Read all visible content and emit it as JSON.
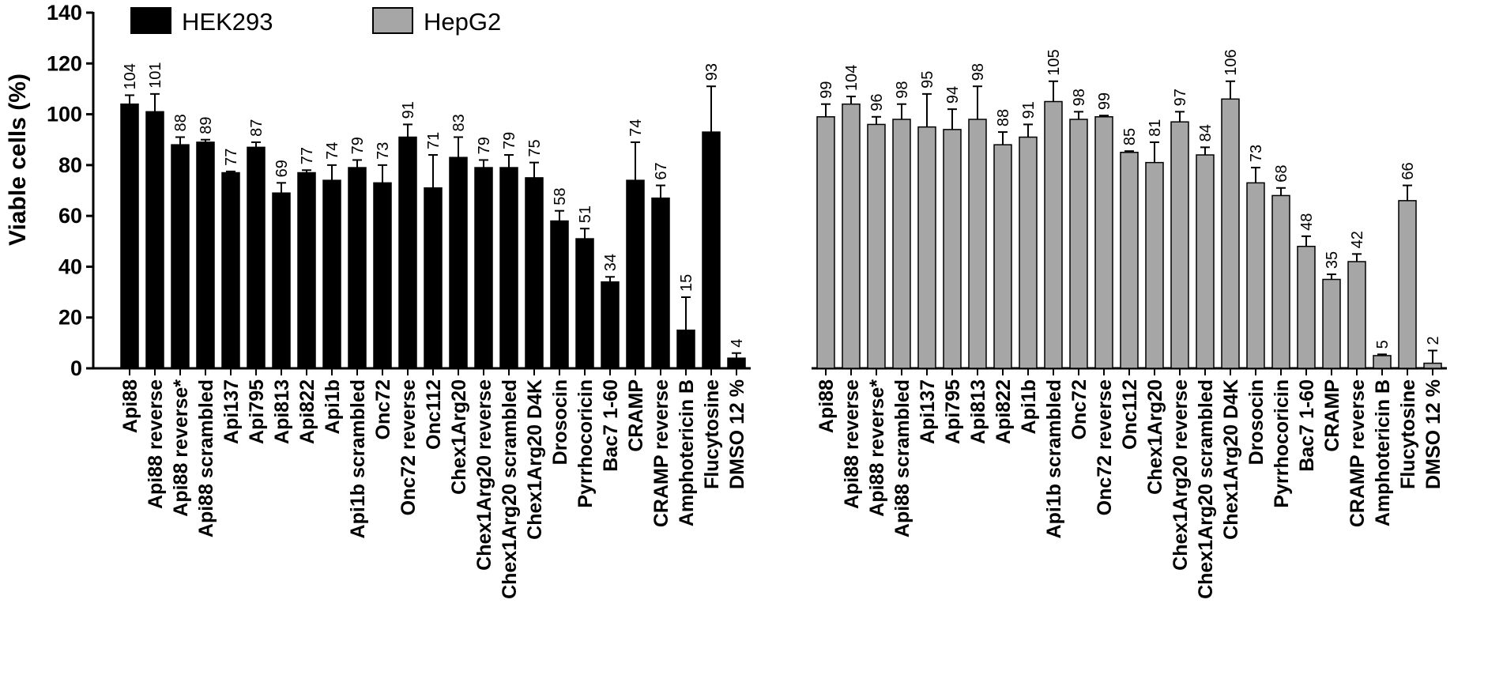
{
  "chart_data": {
    "type": "bar",
    "ylabel": "Viable cells (%)",
    "xlabel": "",
    "ylim": [
      0,
      140
    ],
    "yticks": [
      "0",
      "20",
      "40",
      "60",
      "80",
      "100",
      "120",
      "140"
    ],
    "legend_position": "top-left",
    "legend": [
      {
        "name": "HEK293",
        "color": "#000000"
      },
      {
        "name": "HepG2",
        "color": "#a6a6a6"
      }
    ],
    "categories": [
      "Api88",
      "Api88 reverse",
      "Api88 reverse*",
      "Api88 scrambled",
      "Api137",
      "Api795",
      "Api813",
      "Api822",
      "Api1b",
      "Api1b scrambled",
      "Onc72",
      "Onc72 reverse",
      "Onc112",
      "Chex1Arg20",
      "Chex1Arg20 reverse",
      "Chex1Arg20 scrambled",
      "Chex1Arg20 D4K",
      "Drosocin",
      "Pyrrhocoricin",
      "Bac7 1-60",
      "CRAMP",
      "CRAMP reverse",
      "Amphotericin B",
      "Flucytosine",
      "DMSO 12 %"
    ],
    "series": [
      {
        "name": "HEK293",
        "color": "#000000",
        "values": [
          104,
          101,
          88,
          89,
          77,
          87,
          69,
          77,
          74,
          79,
          73,
          91,
          71,
          83,
          79,
          79,
          75,
          58,
          51,
          34,
          74,
          67,
          15,
          93,
          4
        ],
        "error_upper": [
          107.5,
          108,
          91,
          90,
          77.5,
          89,
          73,
          78,
          80,
          82,
          80,
          96,
          84,
          91,
          82,
          84,
          81,
          62,
          55,
          36,
          89,
          72,
          28,
          111,
          6
        ]
      },
      {
        "name": "HepG2",
        "color": "#a6a6a6",
        "values": [
          99,
          104,
          96,
          98,
          95,
          94,
          98,
          88,
          91,
          105,
          98,
          99,
          85,
          81,
          97,
          84,
          106,
          73,
          68,
          48,
          35,
          42,
          5,
          66,
          2
        ],
        "error_upper": [
          104,
          107,
          99,
          104,
          108,
          102,
          111,
          93,
          96,
          113,
          101,
          99.5,
          85.5,
          89,
          101,
          87,
          113,
          79,
          71,
          52,
          37,
          45,
          5.5,
          72,
          7
        ]
      }
    ]
  }
}
